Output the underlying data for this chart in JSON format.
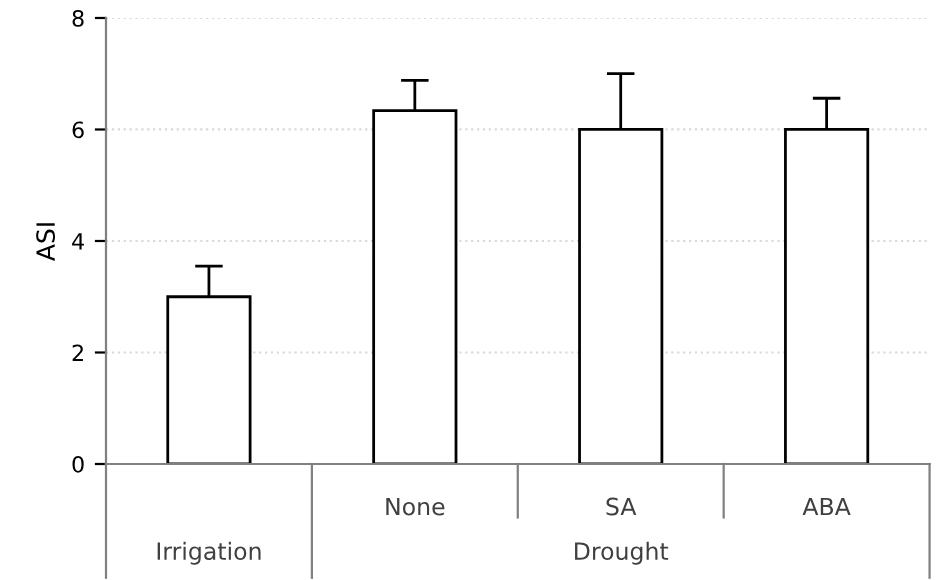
{
  "chart_data": {
    "type": "bar",
    "ylabel": "ASI",
    "categories": [
      null,
      "None",
      "SA",
      "ABA"
    ],
    "values": [
      3.0,
      6.34,
      6.0,
      6.0
    ],
    "errors": [
      [
        3.0,
        3.55
      ],
      [
        6.34,
        6.88
      ],
      [
        6.0,
        7.0
      ],
      [
        6.0,
        6.56
      ]
    ],
    "color": "#ffffff",
    "ylim": [
      0,
      8
    ],
    "yticks": [
      0,
      2,
      4,
      6,
      8
    ],
    "grid": "y",
    "annotations": [
      "Irrigation",
      "Drought"
    ]
  }
}
